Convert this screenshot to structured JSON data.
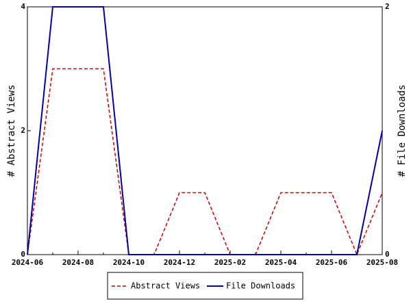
{
  "chart_data": {
    "type": "line",
    "categories": [
      "2024-06",
      null,
      "2024-08",
      null,
      "2024-10",
      null,
      "2024-12",
      null,
      "2025-02",
      null,
      "2025-04",
      null,
      "2025-06",
      null,
      "2025-08"
    ],
    "series": [
      {
        "name": "Abstract Views",
        "color": "#cc0000",
        "dash": true,
        "values": [
          0,
          3,
          3,
          3,
          0,
          0,
          1,
          1,
          0,
          0,
          1,
          1,
          1,
          0,
          1
        ]
      },
      {
        "name": "File Downloads",
        "color": "#0000aa",
        "axis": "y2",
        "values": [
          0,
          2,
          2,
          2,
          0,
          0,
          0,
          0,
          0,
          0,
          0,
          0,
          0,
          0,
          1
        ]
      }
    ],
    "ylabel": "# Abstract Views",
    "y2label": "# File Downloads",
    "ylim": [
      0,
      4
    ],
    "yticks": [
      0,
      2,
      4
    ],
    "y2lim": [
      0,
      2
    ],
    "y2ticks": [
      0,
      2
    ],
    "legend": "bottom"
  }
}
